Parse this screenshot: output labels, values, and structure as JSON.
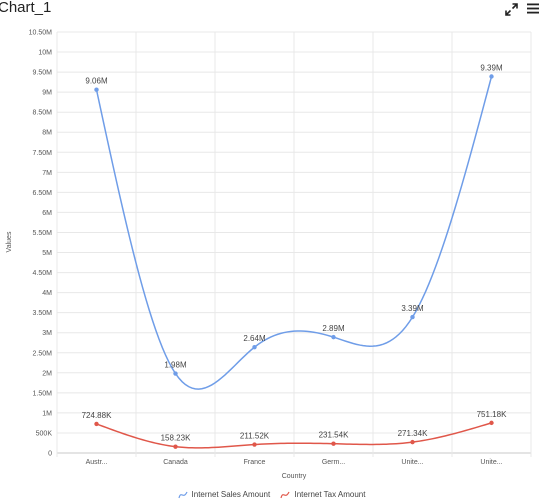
{
  "header": {
    "title": "Chart_1",
    "expand_icon": "expand-arrows-icon",
    "menu_icon": "hamburger-menu-icon"
  },
  "chart_data": {
    "type": "line",
    "smooth": true,
    "categories": [
      "Austr...",
      "Canada",
      "France",
      "Germ...",
      "Unite...",
      "Unite..."
    ],
    "series": [
      {
        "name": "Internet Sales Amount",
        "color": "#6f9de8",
        "values": [
          9060000,
          1980000,
          2640000,
          2890000,
          3390000,
          9390000
        ],
        "labels": [
          "9.06M",
          "1.98M",
          "2.64M",
          "2.89M",
          "3.39M",
          "9.39M"
        ]
      },
      {
        "name": "Internet Tax Amount",
        "color": "#e0574a",
        "values": [
          724880,
          158230,
          211520,
          231540,
          271340,
          751180
        ],
        "labels": [
          "724.88K",
          "158.23K",
          "211.52K",
          "231.54K",
          "271.34K",
          "751.18K"
        ]
      }
    ],
    "ylim": [
      0,
      10500000
    ],
    "yticks": [
      {
        "value": 0,
        "label": "0"
      },
      {
        "value": 500000,
        "label": "500K"
      },
      {
        "value": 1000000,
        "label": "1M"
      },
      {
        "value": 1500000,
        "label": "1.50M"
      },
      {
        "value": 2000000,
        "label": "2M"
      },
      {
        "value": 2500000,
        "label": "2.50M"
      },
      {
        "value": 3000000,
        "label": "3M"
      },
      {
        "value": 3500000,
        "label": "3.50M"
      },
      {
        "value": 4000000,
        "label": "4M"
      },
      {
        "value": 4500000,
        "label": "4.50M"
      },
      {
        "value": 5000000,
        "label": "5M"
      },
      {
        "value": 5500000,
        "label": "5.50M"
      },
      {
        "value": 6000000,
        "label": "6M"
      },
      {
        "value": 6500000,
        "label": "6.50M"
      },
      {
        "value": 7000000,
        "label": "7M"
      },
      {
        "value": 7500000,
        "label": "7.50M"
      },
      {
        "value": 8000000,
        "label": "8M"
      },
      {
        "value": 8500000,
        "label": "8.50M"
      },
      {
        "value": 9000000,
        "label": "9M"
      },
      {
        "value": 9500000,
        "label": "9.50M"
      },
      {
        "value": 10000000,
        "label": "10M"
      },
      {
        "value": 10500000,
        "label": "10.50M"
      }
    ],
    "xlabel": "Country",
    "ylabel": "Values",
    "grid": true,
    "legend": "bottom"
  }
}
